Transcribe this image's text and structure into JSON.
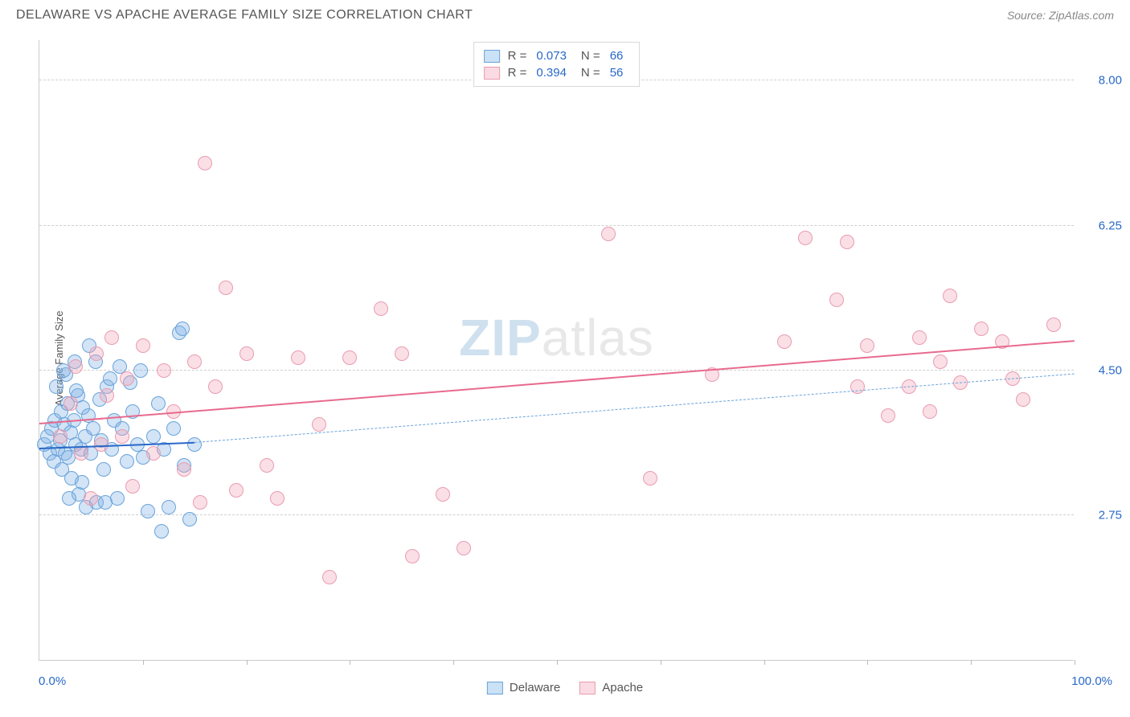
{
  "title": "DELAWARE VS APACHE AVERAGE FAMILY SIZE CORRELATION CHART",
  "source_label": "Source: ZipAtlas.com",
  "ylabel": "Average Family Size",
  "watermark_zip": "ZIP",
  "watermark_atlas": "atlas",
  "chart": {
    "type": "scatter",
    "xlim": [
      0,
      100
    ],
    "ylim": [
      1.0,
      8.5
    ],
    "x_min_label": "0.0%",
    "x_max_label": "100.0%",
    "ytick_values": [
      2.75,
      4.5,
      6.25,
      8.0
    ],
    "ytick_labels": [
      "2.75",
      "4.50",
      "6.25",
      "8.00"
    ],
    "xtick_values": [
      10,
      20,
      30,
      40,
      50,
      60,
      70,
      80,
      90,
      100
    ],
    "grid_color": "#d0d0d0",
    "background_color": "#ffffff",
    "marker_radius": 9,
    "series": [
      {
        "name": "Delaware",
        "marker_fill": "rgba(126,179,230,0.35)",
        "marker_stroke": "#6aa3da",
        "r_value": "0.073",
        "n_value": "66",
        "trend": {
          "x1": 0,
          "y1": 3.55,
          "x2": 15,
          "y2": 3.62,
          "solid_color": "#2968c8",
          "dash_color": "#6aa3da",
          "dash_x2": 100,
          "dash_y2": 4.45
        },
        "points": [
          [
            0.5,
            3.6
          ],
          [
            0.8,
            3.7
          ],
          [
            1.0,
            3.5
          ],
          [
            1.2,
            3.8
          ],
          [
            1.4,
            3.4
          ],
          [
            1.5,
            3.9
          ],
          [
            1.8,
            3.55
          ],
          [
            2.0,
            3.65
          ],
          [
            2.1,
            4.0
          ],
          [
            2.2,
            3.3
          ],
          [
            2.4,
            3.85
          ],
          [
            2.5,
            3.5
          ],
          [
            2.7,
            4.1
          ],
          [
            2.8,
            3.45
          ],
          [
            3.0,
            3.75
          ],
          [
            3.1,
            3.2
          ],
          [
            3.3,
            3.9
          ],
          [
            3.5,
            3.6
          ],
          [
            3.7,
            4.2
          ],
          [
            3.8,
            3.0
          ],
          [
            4.0,
            3.55
          ],
          [
            4.2,
            4.05
          ],
          [
            4.4,
            3.7
          ],
          [
            4.5,
            2.85
          ],
          [
            4.7,
            3.95
          ],
          [
            5.0,
            3.5
          ],
          [
            5.2,
            3.8
          ],
          [
            5.5,
            2.9
          ],
          [
            5.8,
            4.15
          ],
          [
            6.0,
            3.65
          ],
          [
            6.2,
            3.3
          ],
          [
            6.5,
            4.3
          ],
          [
            7.0,
            3.55
          ],
          [
            7.2,
            3.9
          ],
          [
            7.5,
            2.95
          ],
          [
            8.0,
            3.8
          ],
          [
            8.5,
            3.4
          ],
          [
            9.0,
            4.0
          ],
          [
            9.5,
            3.6
          ],
          [
            10.0,
            3.45
          ],
          [
            10.5,
            2.8
          ],
          [
            11.0,
            3.7
          ],
          [
            11.5,
            4.1
          ],
          [
            12.0,
            3.55
          ],
          [
            12.5,
            2.85
          ],
          [
            13.0,
            3.8
          ],
          [
            13.5,
            4.95
          ],
          [
            14.0,
            3.35
          ],
          [
            14.5,
            2.7
          ],
          [
            15.0,
            3.6
          ],
          [
            3.6,
            4.25
          ],
          [
            4.1,
            3.15
          ],
          [
            5.4,
            4.6
          ],
          [
            6.8,
            4.4
          ],
          [
            7.8,
            4.55
          ],
          [
            8.8,
            4.35
          ],
          [
            1.6,
            4.3
          ],
          [
            2.6,
            4.45
          ],
          [
            3.4,
            4.6
          ],
          [
            4.8,
            4.8
          ],
          [
            9.8,
            4.5
          ],
          [
            2.9,
            2.95
          ],
          [
            6.4,
            2.9
          ],
          [
            11.8,
            2.55
          ],
          [
            13.8,
            5.0
          ],
          [
            2.3,
            4.5
          ]
        ]
      },
      {
        "name": "Apache",
        "marker_fill": "rgba(244,164,184,0.35)",
        "marker_stroke": "#e89cb0",
        "r_value": "0.394",
        "n_value": "56",
        "trend": {
          "x1": 0,
          "y1": 3.85,
          "x2": 100,
          "y2": 4.85,
          "solid_color": "#e86a8e"
        },
        "points": [
          [
            2.0,
            3.7
          ],
          [
            3.0,
            4.1
          ],
          [
            3.5,
            4.55
          ],
          [
            4.0,
            3.5
          ],
          [
            5.0,
            2.95
          ],
          [
            5.5,
            4.7
          ],
          [
            6.0,
            3.6
          ],
          [
            6.5,
            4.2
          ],
          [
            7.0,
            4.9
          ],
          [
            8.0,
            3.7
          ],
          [
            8.5,
            4.4
          ],
          [
            9.0,
            3.1
          ],
          [
            10.0,
            4.8
          ],
          [
            11.0,
            3.5
          ],
          [
            12.0,
            4.5
          ],
          [
            13.0,
            4.0
          ],
          [
            14.0,
            3.3
          ],
          [
            15.0,
            4.6
          ],
          [
            15.5,
            2.9
          ],
          [
            16.0,
            7.0
          ],
          [
            17.0,
            4.3
          ],
          [
            18.0,
            5.5
          ],
          [
            19.0,
            3.05
          ],
          [
            20.0,
            4.7
          ],
          [
            22.0,
            3.35
          ],
          [
            23.0,
            2.95
          ],
          [
            25.0,
            4.65
          ],
          [
            27.0,
            3.85
          ],
          [
            28.0,
            2.0
          ],
          [
            30.0,
            4.65
          ],
          [
            33.0,
            5.25
          ],
          [
            35.0,
            4.7
          ],
          [
            36.0,
            2.25
          ],
          [
            39.0,
            3.0
          ],
          [
            41.0,
            2.35
          ],
          [
            55.0,
            6.15
          ],
          [
            59.0,
            3.2
          ],
          [
            65.0,
            4.45
          ],
          [
            72.0,
            4.85
          ],
          [
            74.0,
            6.1
          ],
          [
            77.0,
            5.35
          ],
          [
            78.0,
            6.05
          ],
          [
            79.0,
            4.3
          ],
          [
            80.0,
            4.8
          ],
          [
            82.0,
            3.95
          ],
          [
            84.0,
            4.3
          ],
          [
            85.0,
            4.9
          ],
          [
            86.0,
            4.0
          ],
          [
            88.0,
            5.4
          ],
          [
            89.0,
            4.35
          ],
          [
            91.0,
            5.0
          ],
          [
            93.0,
            4.85
          ],
          [
            94.0,
            4.4
          ],
          [
            95.0,
            4.15
          ],
          [
            98.0,
            5.05
          ],
          [
            87.0,
            4.6
          ]
        ]
      }
    ]
  },
  "legend_top": [
    {
      "swatch_fill": "rgba(126,179,230,0.4)",
      "swatch_stroke": "#6aa3da"
    },
    {
      "swatch_fill": "rgba(244,164,184,0.4)",
      "swatch_stroke": "#e89cb0"
    }
  ],
  "legend_bottom": [
    {
      "label": "Delaware",
      "swatch_fill": "rgba(126,179,230,0.4)",
      "swatch_stroke": "#6aa3da"
    },
    {
      "label": "Apache",
      "swatch_fill": "rgba(244,164,184,0.4)",
      "swatch_stroke": "#e89cb0"
    }
  ]
}
